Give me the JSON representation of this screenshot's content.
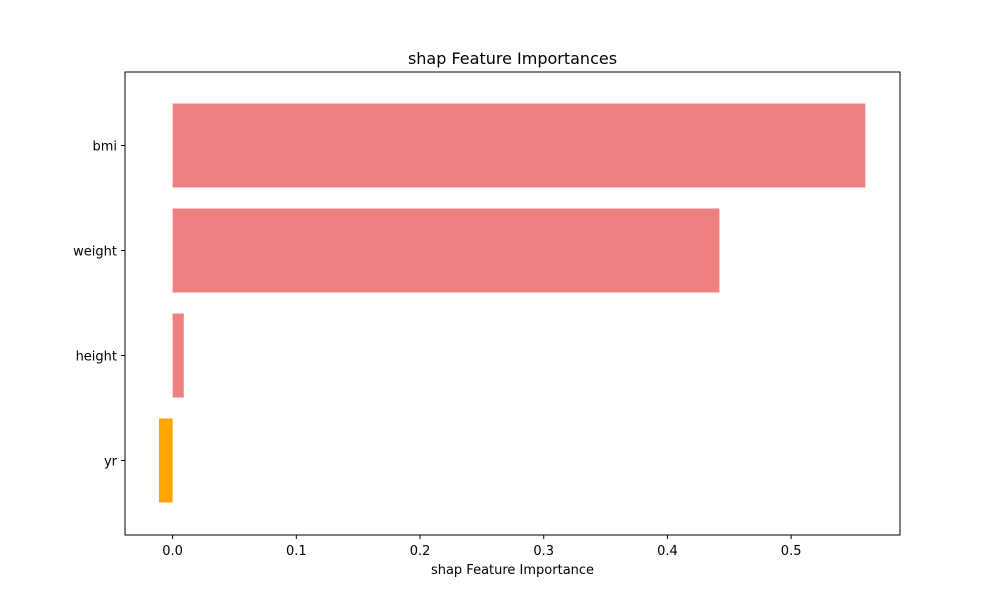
{
  "chart_data": {
    "type": "bar",
    "orientation": "horizontal",
    "title": "shap Feature Importances",
    "xlabel": "shap Feature Importance",
    "ylabel": "",
    "categories": [
      "bmi",
      "weight",
      "height",
      "yr"
    ],
    "values": [
      0.56,
      0.442,
      0.009,
      -0.011
    ],
    "xlim": [
      -0.0385,
      0.588
    ],
    "xticks": [
      0.0,
      0.1,
      0.2,
      0.3,
      0.4,
      0.5
    ],
    "xtick_labels": [
      "0.0",
      "0.1",
      "0.2",
      "0.3",
      "0.4",
      "0.5"
    ],
    "grid": false,
    "legend": false,
    "colors": {
      "positive": "#f08080",
      "negative": "#ffa500",
      "axis": "#000000"
    }
  }
}
